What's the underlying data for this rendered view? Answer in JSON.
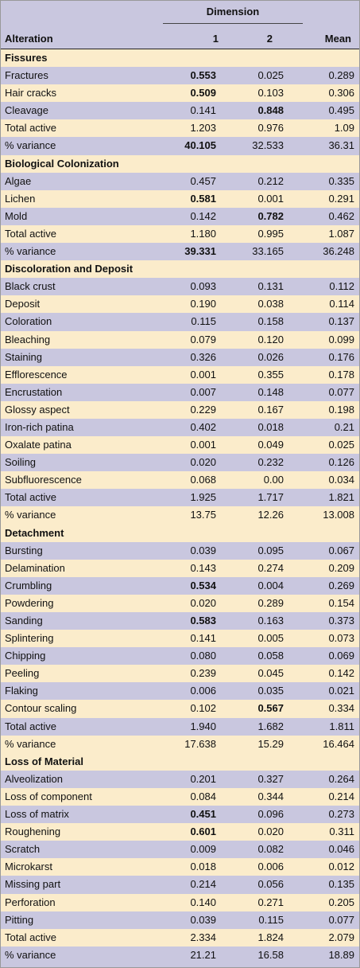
{
  "header": {
    "group_label": "Dimension",
    "alteration_label": "Alteration",
    "col1_label": "1",
    "col2_label": "2",
    "mean_label": "Mean"
  },
  "sections": [
    {
      "title": "Fissures",
      "rows": [
        {
          "name": "Fractures",
          "d1": "0.553",
          "d2": "0.025",
          "mean": "0.289",
          "bold1": true,
          "bold2": false
        },
        {
          "name": "Hair cracks",
          "d1": "0.509",
          "d2": "0.103",
          "mean": "0.306",
          "bold1": true,
          "bold2": false
        },
        {
          "name": "Cleavage",
          "d1": "0.141",
          "d2": "0.848",
          "mean": "0.495",
          "bold1": false,
          "bold2": true
        },
        {
          "name": "Total active",
          "d1": "1.203",
          "d2": "0.976",
          "mean": "1.09",
          "bold1": false,
          "bold2": false
        },
        {
          "name": "% variance",
          "d1": "40.105",
          "d2": "32.533",
          "mean": "36.31",
          "bold1": true,
          "bold2": false
        }
      ]
    },
    {
      "title": "Biological Colonization",
      "rows": [
        {
          "name": "Algae",
          "d1": "0.457",
          "d2": "0.212",
          "mean": "0.335",
          "bold1": false,
          "bold2": false
        },
        {
          "name": "Lichen",
          "d1": "0.581",
          "d2": "0.001",
          "mean": "0.291",
          "bold1": true,
          "bold2": false
        },
        {
          "name": "Mold",
          "d1": "0.142",
          "d2": "0.782",
          "mean": "0.462",
          "bold1": false,
          "bold2": true
        },
        {
          "name": "Total active",
          "d1": "1.180",
          "d2": "0.995",
          "mean": "1.087",
          "bold1": false,
          "bold2": false
        },
        {
          "name": "% variance",
          "d1": "39.331",
          "d2": "33.165",
          "mean": "36.248",
          "bold1": true,
          "bold2": false
        }
      ]
    },
    {
      "title": "Discoloration and Deposit",
      "rows": [
        {
          "name": "Black crust",
          "d1": "0.093",
          "d2": "0.131",
          "mean": "0.112",
          "bold1": false,
          "bold2": false
        },
        {
          "name": "Deposit",
          "d1": "0.190",
          "d2": "0.038",
          "mean": "0.114",
          "bold1": false,
          "bold2": false
        },
        {
          "name": "Coloration",
          "d1": "0.115",
          "d2": "0.158",
          "mean": "0.137",
          "bold1": false,
          "bold2": false
        },
        {
          "name": "Bleaching",
          "d1": "0.079",
          "d2": "0.120",
          "mean": "0.099",
          "bold1": false,
          "bold2": false
        },
        {
          "name": "Staining",
          "d1": "0.326",
          "d2": "0.026",
          "mean": "0.176",
          "bold1": false,
          "bold2": false
        },
        {
          "name": "Efflorescence",
          "d1": "0.001",
          "d2": "0.355",
          "mean": "0.178",
          "bold1": false,
          "bold2": false
        },
        {
          "name": "Encrustation",
          "d1": "0.007",
          "d2": "0.148",
          "mean": "0.077",
          "bold1": false,
          "bold2": false
        },
        {
          "name": "Glossy aspect",
          "d1": "0.229",
          "d2": "0.167",
          "mean": "0.198",
          "bold1": false,
          "bold2": false
        },
        {
          "name": "Iron-rich patina",
          "d1": "0.402",
          "d2": "0.018",
          "mean": "0.21",
          "bold1": false,
          "bold2": false
        },
        {
          "name": "Oxalate patina",
          "d1": "0.001",
          "d2": "0.049",
          "mean": "0.025",
          "bold1": false,
          "bold2": false
        },
        {
          "name": "Soiling",
          "d1": "0.020",
          "d2": "0.232",
          "mean": "0.126",
          "bold1": false,
          "bold2": false
        },
        {
          "name": "Subfluorescence",
          "d1": "0.068",
          "d2": "0.00",
          "mean": "0.034",
          "bold1": false,
          "bold2": false
        },
        {
          "name": "Total active",
          "d1": "1.925",
          "d2": "1.717",
          "mean": "1.821",
          "bold1": false,
          "bold2": false
        },
        {
          "name": "% variance",
          "d1": "13.75",
          "d2": "12.26",
          "mean": "13.008",
          "bold1": false,
          "bold2": false
        }
      ]
    },
    {
      "title": "Detachment",
      "rows": [
        {
          "name": "Bursting",
          "d1": "0.039",
          "d2": "0.095",
          "mean": "0.067",
          "bold1": false,
          "bold2": false
        },
        {
          "name": "Delamination",
          "d1": "0.143",
          "d2": "0.274",
          "mean": "0.209",
          "bold1": false,
          "bold2": false
        },
        {
          "name": "Crumbling",
          "d1": "0.534",
          "d2": "0.004",
          "mean": "0.269",
          "bold1": true,
          "bold2": false
        },
        {
          "name": "Powdering",
          "d1": "0.020",
          "d2": "0.289",
          "mean": "0.154",
          "bold1": false,
          "bold2": false
        },
        {
          "name": "Sanding",
          "d1": "0.583",
          "d2": "0.163",
          "mean": "0.373",
          "bold1": true,
          "bold2": false
        },
        {
          "name": "Splintering",
          "d1": "0.141",
          "d2": "0.005",
          "mean": "0.073",
          "bold1": false,
          "bold2": false
        },
        {
          "name": "Chipping",
          "d1": "0.080",
          "d2": "0.058",
          "mean": "0.069",
          "bold1": false,
          "bold2": false
        },
        {
          "name": "Peeling",
          "d1": "0.239",
          "d2": "0.045",
          "mean": "0.142",
          "bold1": false,
          "bold2": false
        },
        {
          "name": "Flaking",
          "d1": "0.006",
          "d2": "0.035",
          "mean": "0.021",
          "bold1": false,
          "bold2": false
        },
        {
          "name": "Contour scaling",
          "d1": "0.102",
          "d2": "0.567",
          "mean": "0.334",
          "bold1": false,
          "bold2": true
        },
        {
          "name": "Total active",
          "d1": "1.940",
          "d2": "1.682",
          "mean": "1.811",
          "bold1": false,
          "bold2": false
        },
        {
          "name": "% variance",
          "d1": "17.638",
          "d2": "15.29",
          "mean": "16.464",
          "bold1": false,
          "bold2": false
        }
      ]
    },
    {
      "title": "Loss of Material",
      "rows": [
        {
          "name": "Alveolization",
          "d1": "0.201",
          "d2": "0.327",
          "mean": "0.264",
          "bold1": false,
          "bold2": false
        },
        {
          "name": "Loss of component",
          "d1": "0.084",
          "d2": "0.344",
          "mean": "0.214",
          "bold1": false,
          "bold2": false
        },
        {
          "name": "Loss of matrix",
          "d1": "0.451",
          "d2": "0.096",
          "mean": "0.273",
          "bold1": true,
          "bold2": false
        },
        {
          "name": "Roughening",
          "d1": "0.601",
          "d2": "0.020",
          "mean": "0.311",
          "bold1": true,
          "bold2": false
        },
        {
          "name": "Scratch",
          "d1": "0.009",
          "d2": "0.082",
          "mean": "0.046",
          "bold1": false,
          "bold2": false
        },
        {
          "name": "Microkarst",
          "d1": "0.018",
          "d2": "0.006",
          "mean": "0.012",
          "bold1": false,
          "bold2": false
        },
        {
          "name": "Missing part",
          "d1": "0.214",
          "d2": "0.056",
          "mean": "0.135",
          "bold1": false,
          "bold2": false
        },
        {
          "name": "Perforation",
          "d1": "0.140",
          "d2": "0.271",
          "mean": "0.205",
          "bold1": false,
          "bold2": false
        },
        {
          "name": "Pitting",
          "d1": "0.039",
          "d2": "0.115",
          "mean": "0.077",
          "bold1": false,
          "bold2": false
        },
        {
          "name": "Total active",
          "d1": "2.334",
          "d2": "1.824",
          "mean": "2.079",
          "bold1": false,
          "bold2": false
        },
        {
          "name": "% variance",
          "d1": "21.21",
          "d2": "16.58",
          "mean": "18.89",
          "bold1": false,
          "bold2": false
        }
      ]
    }
  ]
}
